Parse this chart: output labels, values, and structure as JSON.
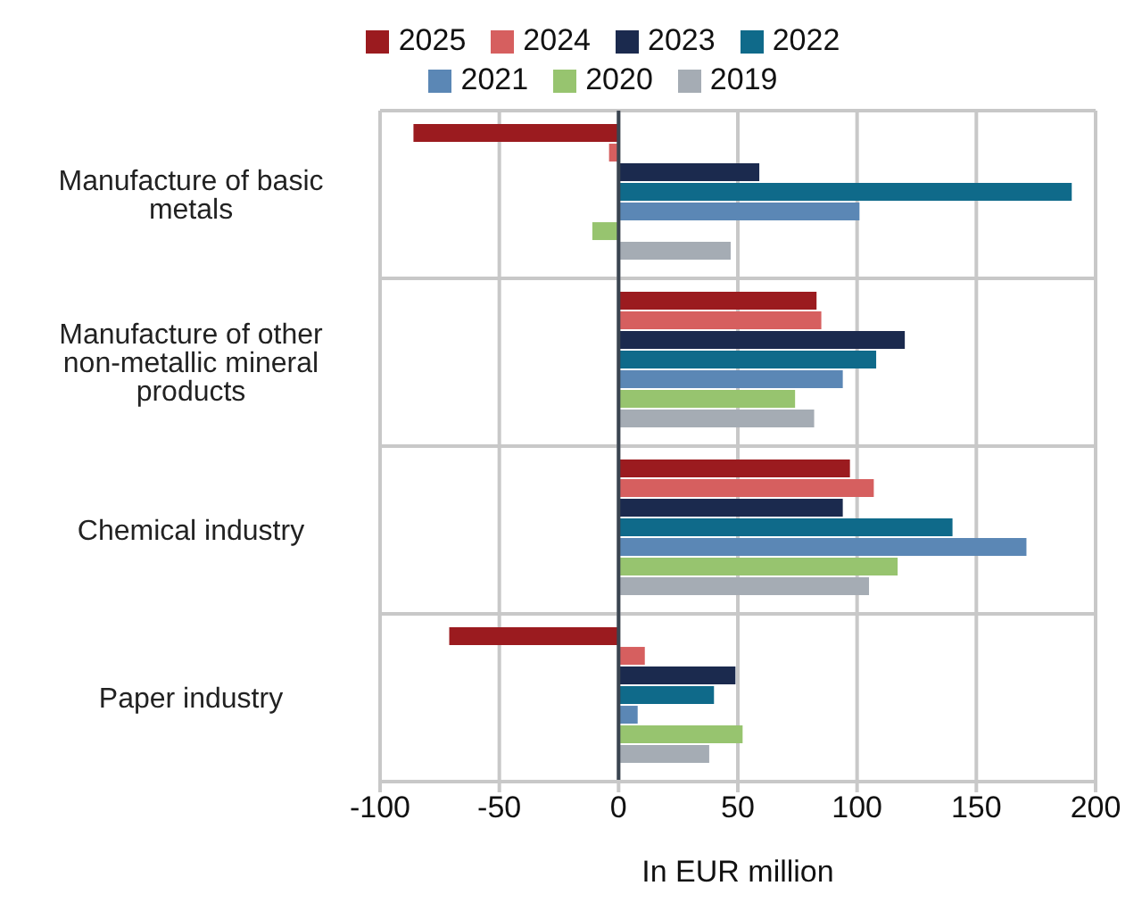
{
  "chart_data": {
    "type": "bar",
    "orientation": "horizontal",
    "xlabel": "In EUR million",
    "categories": [
      "Manufacture of basic metals",
      "Manufacture of other non-metallic mineral products",
      "Chemical industry",
      "Paper industry"
    ],
    "series": [
      {
        "name": "2025",
        "color": "#9b1b1f",
        "values": [
          -86,
          83,
          97,
          -71
        ]
      },
      {
        "name": "2024",
        "color": "#d65f5f",
        "values": [
          -4,
          85,
          107,
          11
        ]
      },
      {
        "name": "2023",
        "color": "#1b2a4e",
        "values": [
          59,
          120,
          94,
          49
        ]
      },
      {
        "name": "2022",
        "color": "#0f6a8a",
        "values": [
          190,
          108,
          140,
          40
        ]
      },
      {
        "name": "2021",
        "color": "#5b87b5",
        "values": [
          101,
          94,
          171,
          8
        ]
      },
      {
        "name": "2020",
        "color": "#97c46f",
        "values": [
          -11,
          74,
          117,
          52
        ]
      },
      {
        "name": "2019",
        "color": "#a5acb4",
        "values": [
          47,
          82,
          105,
          38
        ]
      }
    ],
    "xlim": [
      -100,
      200
    ],
    "xticks": [
      -100,
      -50,
      0,
      50,
      100,
      150,
      200
    ],
    "grid": true,
    "legend": "top"
  }
}
